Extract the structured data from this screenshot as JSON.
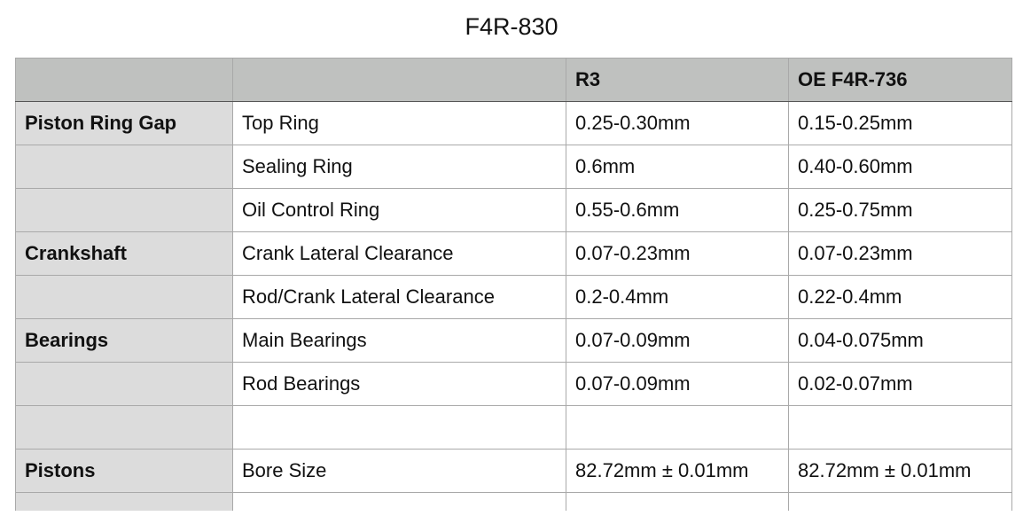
{
  "title": "F4R-830",
  "table": {
    "headers": [
      "",
      "",
      "R3",
      "OE F4R-736"
    ],
    "rows": [
      {
        "category": "Piston Ring Gap",
        "item": "Top Ring",
        "r3": "0.25-0.30mm",
        "oe": "0.15-0.25mm"
      },
      {
        "category": "",
        "item": "Sealing Ring",
        "r3": "0.6mm",
        "oe": "0.40-0.60mm"
      },
      {
        "category": "",
        "item": "Oil Control Ring",
        "r3": "0.55-0.6mm",
        "oe": "0.25-0.75mm"
      },
      {
        "category": "Crankshaft",
        "item": "Crank Lateral Clearance",
        "r3": "0.07-0.23mm",
        "oe": "0.07-0.23mm"
      },
      {
        "category": "",
        "item": "Rod/Crank Lateral Clearance",
        "r3": "0.2-0.4mm",
        "oe": "0.22-0.4mm"
      },
      {
        "category": "Bearings",
        "item": "Main Bearings",
        "r3": "0.07-0.09mm",
        "oe": "0.04-0.075mm"
      },
      {
        "category": "",
        "item": "Rod Bearings",
        "r3": "0.07-0.09mm",
        "oe": "0.02-0.07mm"
      },
      {
        "category": "",
        "item": "",
        "r3": "",
        "oe": ""
      },
      {
        "category": "Pistons",
        "item": "Bore Size",
        "r3": "82.72mm ± 0.01mm",
        "oe": "82.72mm ± 0.01mm"
      },
      {
        "category": "",
        "item": "",
        "r3": "",
        "oe": ""
      }
    ]
  },
  "colors": {
    "header_bg": "#bfc1bf",
    "category_bg": "#dcdcdc",
    "border": "#a9a9a9"
  }
}
